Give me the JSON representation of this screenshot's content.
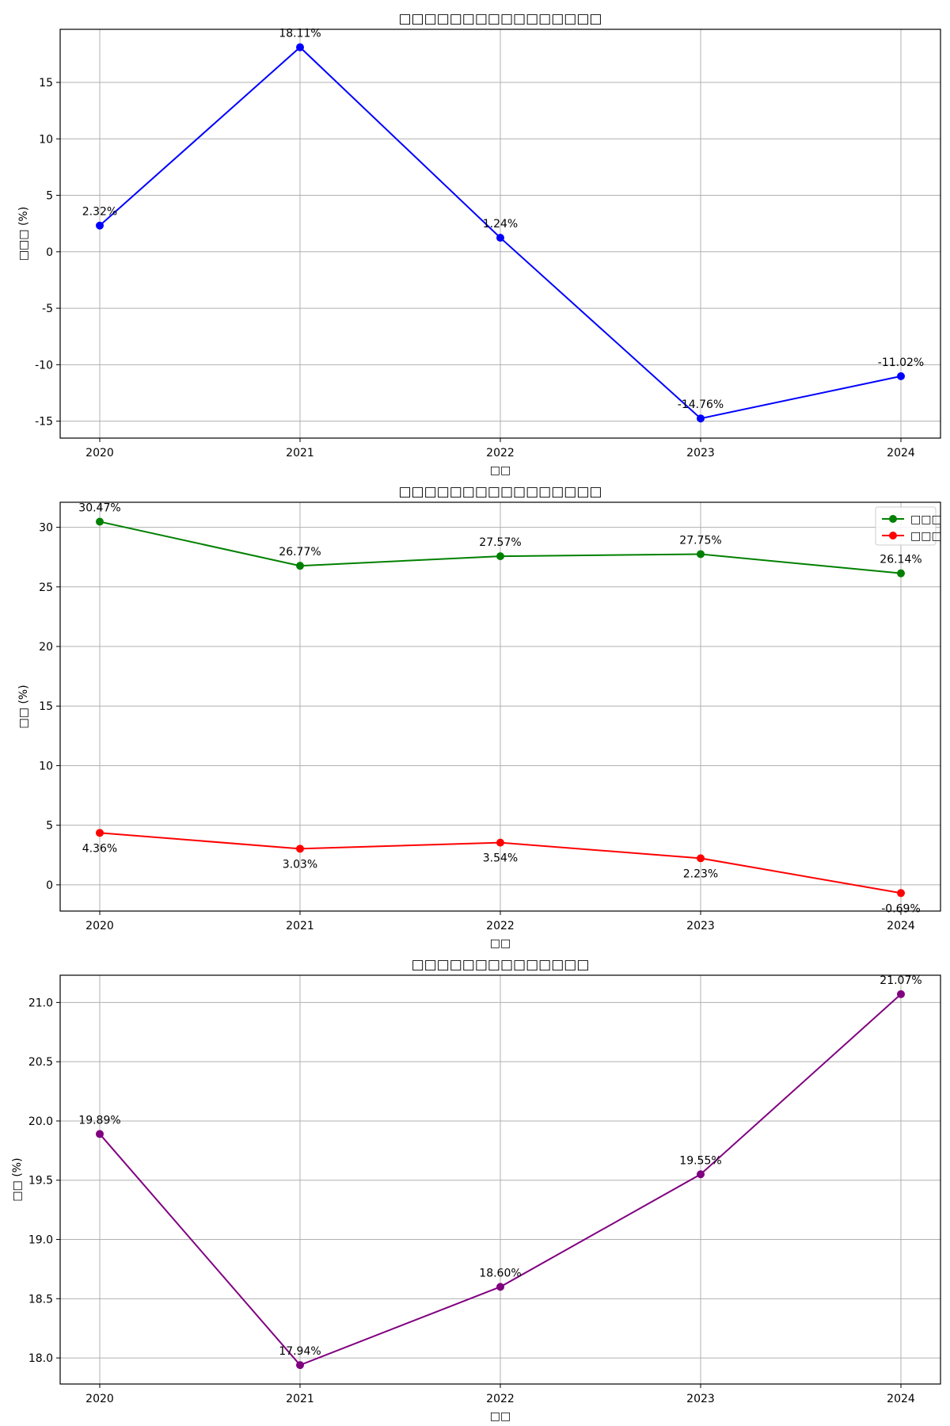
{
  "chart_data": [
    {
      "type": "line",
      "title": "□□□□□□□□□□□□□□□□",
      "xlabel": "□□",
      "ylabel": "□□□ (%)",
      "categories": [
        "2020",
        "2021",
        "2022",
        "2023",
        "2024"
      ],
      "yticks": [
        -15,
        -10,
        -5,
        0,
        5,
        10,
        15
      ],
      "ylim": [
        -16.5,
        19.7
      ],
      "grid": true,
      "series": [
        {
          "color": "#0000ff",
          "values": [
            2.32,
            18.11,
            1.24,
            -14.76,
            -11.02
          ],
          "labels": [
            "2.32%",
            "18.11%",
            "1.24%",
            "-14.76%",
            "-11.02%"
          ],
          "label_position": "above"
        }
      ]
    },
    {
      "type": "line",
      "title": "□□□□□□□□□□□□□□□□",
      "xlabel": "□□",
      "ylabel": "□□ (%)",
      "categories": [
        "2020",
        "2021",
        "2022",
        "2023",
        "2024"
      ],
      "yticks": [
        0,
        5,
        10,
        15,
        20,
        25,
        30
      ],
      "ylim": [
        -2.2,
        32.1
      ],
      "grid": true,
      "legend_position": "top-right",
      "series": [
        {
          "name": "□□□",
          "color": "#008000",
          "values": [
            30.47,
            26.77,
            27.57,
            27.75,
            26.14
          ],
          "labels": [
            "30.47%",
            "26.77%",
            "27.57%",
            "27.75%",
            "26.14%"
          ],
          "label_position": "above"
        },
        {
          "name": "□□□",
          "color": "#ff0000",
          "values": [
            4.36,
            3.03,
            3.54,
            2.23,
            -0.69
          ],
          "labels": [
            "4.36%",
            "3.03%",
            "3.54%",
            "2.23%",
            "-0.69%"
          ],
          "label_position": "below"
        }
      ]
    },
    {
      "type": "line",
      "title": "□□□□□□□□□□□□□□",
      "xlabel": "□□",
      "ylabel": "□□ (%)",
      "categories": [
        "2020",
        "2021",
        "2022",
        "2023",
        "2024"
      ],
      "yticks": [
        "18.0",
        "18.5",
        "19.0",
        "19.5",
        "20.0",
        "20.5",
        "21.0"
      ],
      "ylim": [
        17.78,
        21.23
      ],
      "grid": true,
      "series": [
        {
          "color": "#800080",
          "values": [
            19.89,
            17.94,
            18.6,
            19.55,
            21.07
          ],
          "labels": [
            "19.89%",
            "17.94%",
            "18.60%",
            "19.55%",
            "21.07%"
          ],
          "label_position": "above"
        }
      ]
    }
  ]
}
